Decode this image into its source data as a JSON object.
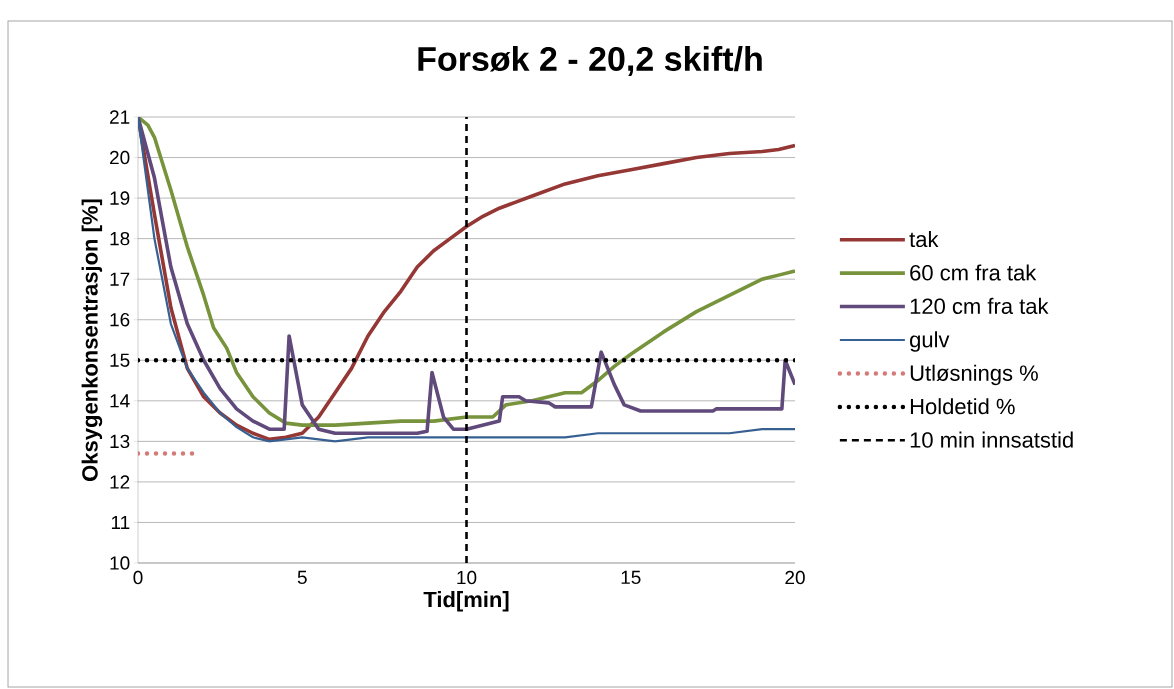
{
  "chart_data": {
    "type": "line",
    "title": "Forsøk 2 - 20,2 skift/h",
    "xlabel": "Tid[min]",
    "ylabel": "Oksygenkonsentrasjon [%]",
    "xlim": [
      0,
      20
    ],
    "ylim": [
      10,
      21
    ],
    "xticks": [
      0,
      5,
      10,
      15,
      20
    ],
    "yticks": [
      10,
      11,
      12,
      13,
      14,
      15,
      16,
      17,
      18,
      19,
      20,
      21
    ],
    "grid": "y",
    "legend": "right",
    "series": [
      {
        "name": "tak",
        "color": "#953735",
        "line_style": "solid",
        "x": [
          0,
          0.5,
          1,
          1.5,
          2,
          2.5,
          3,
          3.5,
          4,
          4.5,
          5,
          5.5,
          6,
          6.5,
          7,
          7.5,
          8,
          8.5,
          9,
          9.5,
          10,
          10.5,
          11,
          11.5,
          12,
          12.5,
          13,
          13.5,
          14,
          15,
          16,
          17,
          18,
          19,
          19.5,
          20
        ],
        "values": [
          21,
          18.6,
          16.3,
          14.8,
          14.1,
          13.7,
          13.4,
          13.2,
          13.05,
          13.1,
          13.2,
          13.6,
          14.2,
          14.8,
          15.6,
          16.2,
          16.7,
          17.3,
          17.7,
          18.0,
          18.3,
          18.55,
          18.75,
          18.9,
          19.05,
          19.2,
          19.35,
          19.45,
          19.55,
          19.7,
          19.85,
          20.0,
          20.1,
          20.15,
          20.2,
          20.3
        ]
      },
      {
        "name": "60 cm fra tak",
        "color": "#77933c",
        "line_style": "solid",
        "x": [
          0,
          0.3,
          0.5,
          1,
          1.5,
          2,
          2.3,
          2.7,
          3,
          3.5,
          4,
          4.5,
          5,
          6,
          7,
          8,
          9,
          10,
          10.8,
          11.2,
          12,
          13,
          13.5,
          14,
          14.5,
          15,
          16,
          17,
          18,
          19,
          19.5,
          20
        ],
        "values": [
          21,
          20.8,
          20.5,
          19.2,
          17.8,
          16.6,
          15.8,
          15.3,
          14.7,
          14.1,
          13.7,
          13.45,
          13.4,
          13.4,
          13.45,
          13.5,
          13.5,
          13.6,
          13.6,
          13.9,
          14.0,
          14.2,
          14.2,
          14.5,
          14.85,
          15.15,
          15.7,
          16.2,
          16.6,
          17.0,
          17.1,
          17.2
        ]
      },
      {
        "name": "120 cm fra tak",
        "color": "#604a7b",
        "line_style": "solid",
        "x": [
          0,
          0.5,
          1,
          1.5,
          2,
          2.5,
          3,
          3.5,
          4,
          4.45,
          4.6,
          5.0,
          5.5,
          6,
          8.5,
          8.8,
          8.95,
          9.3,
          9.6,
          10,
          10.5,
          11.0,
          11.1,
          11.6,
          11.8,
          12.5,
          12.7,
          13.8,
          14.1,
          14.5,
          14.8,
          15.3,
          17.5,
          17.6,
          19.6,
          19.7,
          20
        ],
        "values": [
          21,
          19.5,
          17.3,
          15.9,
          15.0,
          14.3,
          13.8,
          13.5,
          13.3,
          13.3,
          15.6,
          13.9,
          13.3,
          13.2,
          13.2,
          13.25,
          14.7,
          13.6,
          13.3,
          13.3,
          13.4,
          13.5,
          14.1,
          14.1,
          14.0,
          13.95,
          13.85,
          13.85,
          15.2,
          14.4,
          13.9,
          13.75,
          13.75,
          13.8,
          13.8,
          15.0,
          14.4
        ]
      },
      {
        "name": "gulv",
        "color": "#376092",
        "line_style": "solid",
        "x": [
          0,
          0.5,
          1,
          1.5,
          2,
          2.5,
          3,
          3.5,
          4,
          4.5,
          5,
          6,
          7,
          8,
          10,
          13,
          14,
          18,
          19,
          20
        ],
        "values": [
          21,
          18.0,
          15.9,
          14.8,
          14.2,
          13.7,
          13.35,
          13.1,
          13.0,
          13.05,
          13.1,
          13.0,
          13.1,
          13.1,
          13.1,
          13.1,
          13.2,
          13.2,
          13.3,
          13.3
        ]
      },
      {
        "name": "Utløsnings %",
        "color": "#d47a78",
        "line_style": "dotted",
        "x": [
          0,
          1.75
        ],
        "values": [
          12.7,
          12.7
        ]
      },
      {
        "name": "Holdetid %",
        "color": "#000000",
        "line_style": "dotted",
        "x": [
          0,
          20
        ],
        "values": [
          15,
          15
        ]
      },
      {
        "name": "10 min innsatstid",
        "color": "#000000",
        "line_style": "dashed",
        "x": [
          10,
          10
        ],
        "values": [
          10,
          21
        ]
      }
    ]
  }
}
